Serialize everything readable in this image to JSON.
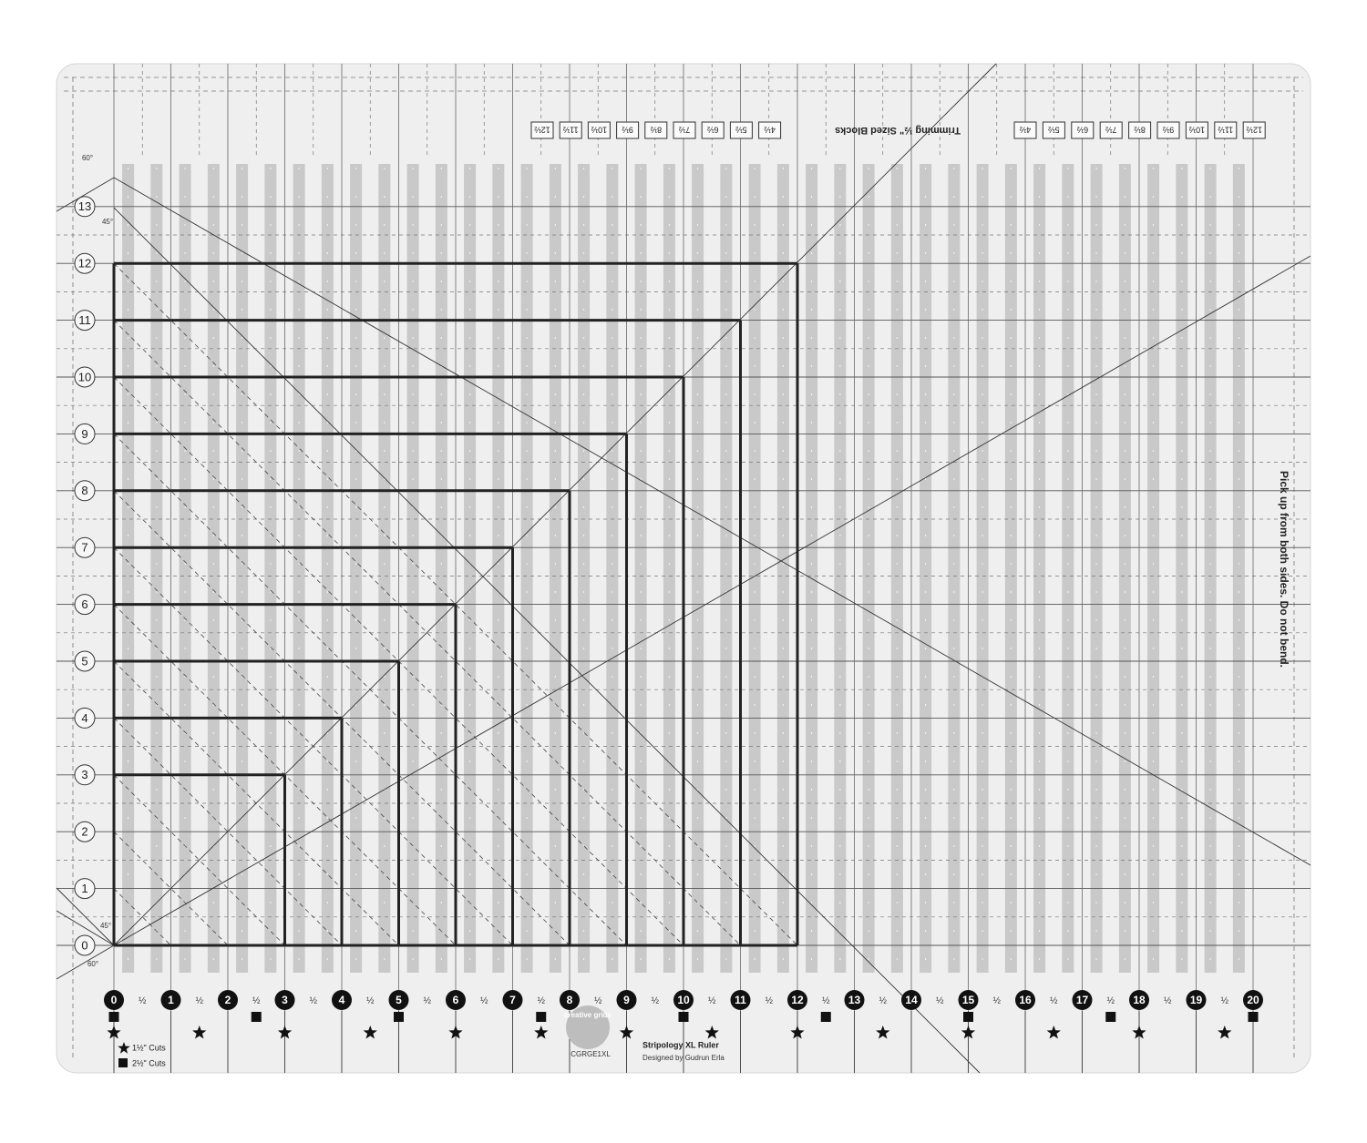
{
  "ruler": {
    "y_labels": [
      "0",
      "1",
      "2",
      "3",
      "4",
      "5",
      "6",
      "7",
      "8",
      "9",
      "10",
      "11",
      "12",
      "13"
    ],
    "x_labels": [
      "0",
      "1",
      "2",
      "3",
      "4",
      "5",
      "6",
      "7",
      "8",
      "9",
      "10",
      "11",
      "12",
      "13",
      "14",
      "15",
      "16",
      "17",
      "18",
      "19",
      "20"
    ],
    "half_label": "½",
    "angle_labels": {
      "top_outer": "60°",
      "top_inner": "45°",
      "bottom_inner": "45°",
      "bottom_outer": "60°"
    },
    "trimming": {
      "title": "Trimming ½\" Sized Blocks",
      "left_sizes": [
        "12½",
        "11½",
        "10½",
        "9½",
        "8½",
        "7½",
        "6½",
        "5½",
        "4½"
      ],
      "right_sizes": [
        "4½",
        "5½",
        "6½",
        "7½",
        "8½",
        "9½",
        "10½",
        "11½",
        "12½"
      ]
    },
    "side_note": "Pick up from both sides. Do not bend.",
    "legend": {
      "star": "1½\" Cuts",
      "square": "2½\" Cuts"
    },
    "product": {
      "logo": "creative grids",
      "name": "Stripology XL Ruler",
      "designer": "Designed by Gudrun Erla",
      "code": "CGRGE1XL"
    }
  }
}
